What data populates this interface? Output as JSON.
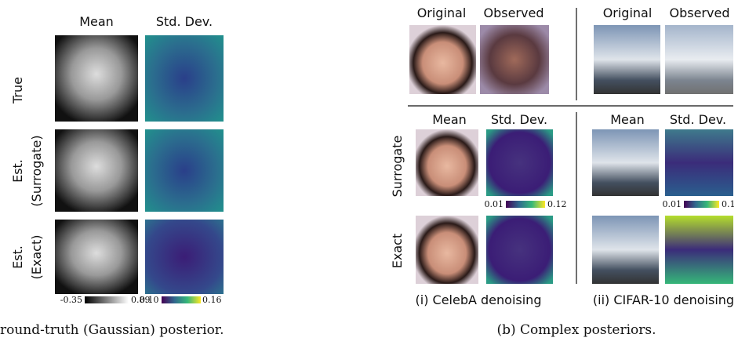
{
  "left": {
    "columns": [
      "Mean",
      "Std. Dev."
    ],
    "rows": [
      [
        "True"
      ],
      [
        "Est.",
        "(Surrogate)"
      ],
      [
        "Est.",
        "(Exact)"
      ]
    ],
    "colorbars": [
      {
        "min": "-0.35",
        "max": "0.89"
      },
      {
        "min": "0.10",
        "max": "0.16"
      }
    ],
    "caption": "round-truth (Gaussian) posterior."
  },
  "right": {
    "top_columns": [
      "Original",
      "Observed",
      "Original",
      "Observed"
    ],
    "bottom_columns": [
      "Mean",
      "Std. Dev.",
      "Mean",
      "Std. Dev."
    ],
    "rows": [
      "Surrogate",
      "Exact"
    ],
    "colorbars": [
      {
        "min": "0.01",
        "max": "0.12"
      },
      {
        "min": "0.01",
        "max": "0.1"
      }
    ],
    "panel_captions": [
      "(i) CelebA denoising",
      "(ii) CIFAR-10 denoising"
    ],
    "caption": "(b) Complex posteriors."
  }
}
